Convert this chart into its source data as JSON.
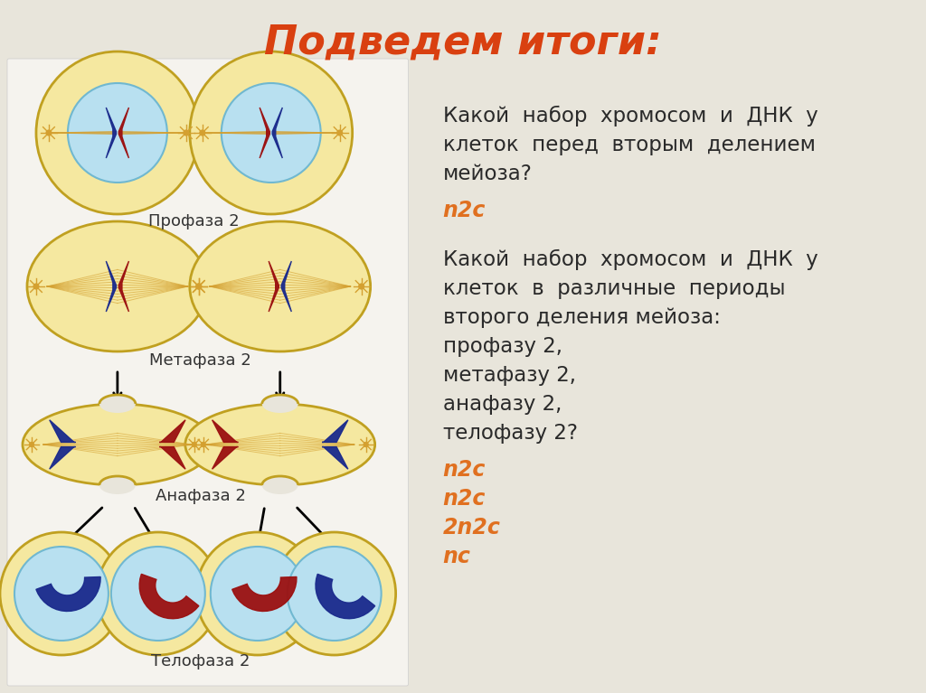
{
  "title": "Подведем итоги:",
  "title_color": "#D94010",
  "title_fontsize": 32,
  "bg_color": "#E8E5DB",
  "left_panel_color": "#F5F3EE",
  "question1_lines": [
    "Какой  набор  хромосом  и  ДНК  у",
    "клеток  перед  вторым  делением",
    "мейоза?"
  ],
  "answer1": "n2c",
  "question2_lines": [
    "Какой  набор  хромосом  и  ДНК  у",
    "клеток  в  различные  периоды",
    "второго деления мейоза:",
    "профазу 2,",
    "метафазу 2,",
    "анафазу 2,",
    "телофазу 2?"
  ],
  "answer2_lines": [
    "n2c",
    "n2c",
    "2n2c",
    "nc"
  ],
  "answer_color": "#E07020",
  "text_color": "#2A2A2A",
  "label_prophase": "Профаза 2",
  "label_metaphase": "Метафаза 2",
  "label_anaphase": "Анафаза 2",
  "label_telophase": "Телофаза 2",
  "cell_fill": "#F5E8A0",
  "nucleus_fill": "#B8E0F0",
  "cell_border": "#C0A020",
  "spindle_color": "#D4A030",
  "blue_chrom": "#1A2A8C",
  "red_chrom": "#9B1010"
}
